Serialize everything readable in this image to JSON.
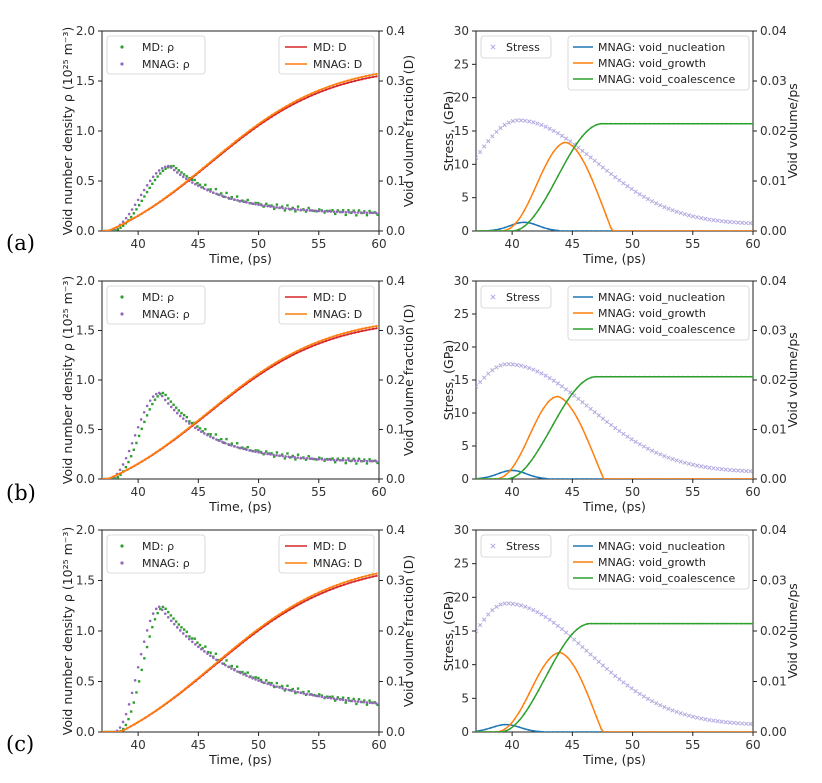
{
  "colors": {
    "md_rho": "#2ca02c",
    "mnag_rho": "#9467bd",
    "md_D": "#d62728",
    "mnag_D": "#ff7f0e",
    "stress": "#b3a8e0",
    "nucleation": "#1f77b4",
    "growth": "#ff7f0e",
    "coalescence": "#2ca02c"
  },
  "chart_data": [
    {
      "type": "scatter",
      "panel": "(a)",
      "position": "left",
      "xlabel": "Time, (ps)",
      "ylabel": "Void number density ρ (10²⁵ m⁻³)",
      "ylabel2": "Void volume fraction (D)",
      "xlim": [
        37,
        60
      ],
      "ylim": [
        0,
        2.0
      ],
      "ylim2": [
        0,
        0.4
      ],
      "xticks": [
        "40",
        "45",
        "50",
        "55",
        "60"
      ],
      "yticks": [
        "0.0",
        "0.5",
        "1.0",
        "1.5",
        "2.0"
      ],
      "yticks2": [
        "0.0",
        "0.1",
        "0.2",
        "0.3",
        "0.4"
      ],
      "legend_left": [
        "MD: ρ",
        "MNAG: ρ"
      ],
      "legend_right": [
        "MD: D",
        "MNAG: D"
      ],
      "rho_params": {
        "peak_t": 42.6,
        "peak": 0.65,
        "onset_width": 2.2,
        "tail": 0.17,
        "decay": 4.5
      },
      "D_params": {
        "t0": 37.5,
        "final": 0.315,
        "mid": 46.0,
        "k": 0.2
      }
    },
    {
      "type": "scatter",
      "panel": "(a)",
      "position": "right",
      "xlabel": "Time, (ps)",
      "ylabel": "Stress, (GPa)",
      "ylabel2": "Void volume/ps",
      "xlim": [
        37,
        60
      ],
      "ylim": [
        0,
        30
      ],
      "ylim2": [
        0,
        0.04
      ],
      "xticks": [
        "40",
        "45",
        "50",
        "55",
        "60"
      ],
      "yticks": [
        "0",
        "5",
        "10",
        "15",
        "20",
        "25",
        "30"
      ],
      "yticks2": [
        "0.00",
        "0.01",
        "0.02",
        "0.03",
        "0.04"
      ],
      "legend_left": [
        "Stress"
      ],
      "legend_right": [
        "MNAG: void_nucleation",
        "MNAG: void_growth",
        "MNAG: void_coalescence"
      ],
      "stress_params": {
        "peak_t": 40.5,
        "peak": 16.6,
        "start": 11.0,
        "end": 1.0
      },
      "nucleation_params": {
        "peak_t": 41.0,
        "peak": 1.3,
        "end_t": 44.0
      },
      "growth_params": {
        "start_t": 39.0,
        "peak_t": 44.5,
        "peak": 13.3,
        "end_t": 48.3
      },
      "coalescence_params": {
        "start_t": 40.0,
        "plateau_t": 47.5,
        "plateau": 16.1
      }
    },
    {
      "type": "scatter",
      "panel": "(b)",
      "position": "left",
      "xlabel": "Time, (ps)",
      "ylabel": "Void number density ρ (10²⁵ m⁻³)",
      "ylabel2": "Void volume fraction (D)",
      "xlim": [
        37,
        60
      ],
      "ylim": [
        0,
        2.0
      ],
      "ylim2": [
        0,
        0.4
      ],
      "xticks": [
        "40",
        "45",
        "50",
        "55",
        "60"
      ],
      "yticks": [
        "0.0",
        "0.5",
        "1.0",
        "1.5",
        "2.0"
      ],
      "yticks2": [
        "0.0",
        "0.1",
        "0.2",
        "0.3",
        "0.4"
      ],
      "legend_left": [
        "MD: ρ",
        "MNAG: ρ"
      ],
      "legend_right": [
        "MD: D",
        "MNAG: D"
      ],
      "rho_params": {
        "peak_t": 41.8,
        "peak": 0.87,
        "onset_width": 1.8,
        "tail": 0.17,
        "decay": 4.2
      },
      "D_params": {
        "t0": 37.5,
        "final": 0.31,
        "mid": 45.8,
        "k": 0.2
      }
    },
    {
      "type": "scatter",
      "panel": "(b)",
      "position": "right",
      "xlabel": "Time, (ps)",
      "ylabel": "Stress, (GPa)",
      "ylabel2": "Void volume/ps",
      "xlim": [
        37,
        60
      ],
      "ylim": [
        0,
        30
      ],
      "ylim2": [
        0,
        0.04
      ],
      "xticks": [
        "40",
        "45",
        "50",
        "55",
        "60"
      ],
      "yticks": [
        "0",
        "5",
        "10",
        "15",
        "20",
        "25",
        "30"
      ],
      "yticks2": [
        "0.00",
        "0.01",
        "0.02",
        "0.03",
        "0.04"
      ],
      "legend_left": [
        "Stress"
      ],
      "legend_right": [
        "MNAG: void_nucleation",
        "MNAG: void_growth",
        "MNAG: void_coalescence"
      ],
      "stress_params": {
        "peak_t": 39.6,
        "peak": 17.4,
        "start": 14.0,
        "end": 1.0
      },
      "nucleation_params": {
        "peak_t": 40.0,
        "peak": 1.3,
        "end_t": 43.0
      },
      "growth_params": {
        "start_t": 38.5,
        "peak_t": 43.8,
        "peak": 12.5,
        "end_t": 47.6
      },
      "coalescence_params": {
        "start_t": 39.5,
        "plateau_t": 47.0,
        "plateau": 15.5
      }
    },
    {
      "type": "scatter",
      "panel": "(c)",
      "position": "left",
      "xlabel": "Time, (ps)",
      "ylabel": "Void number density ρ (10²⁵ m⁻³)",
      "ylabel2": "Void volume fraction (D)",
      "xlim": [
        37,
        60
      ],
      "ylim": [
        0,
        2.0
      ],
      "ylim2": [
        0,
        0.4
      ],
      "xticks": [
        "40",
        "45",
        "50",
        "55",
        "60"
      ],
      "yticks": [
        "0.0",
        "0.5",
        "1.0",
        "1.5",
        "2.0"
      ],
      "yticks2": [
        "0.0",
        "0.1",
        "0.2",
        "0.3",
        "0.4"
      ],
      "legend_left": [
        "MD: ρ",
        "MNAG: ρ"
      ],
      "legend_right": [
        "MD: D",
        "MNAG: D"
      ],
      "rho_params": {
        "peak_t": 41.8,
        "peak": 1.24,
        "onset_width": 1.6,
        "tail": 0.22,
        "decay": 6.5
      },
      "D_params": {
        "t0": 38.5,
        "final": 0.315,
        "mid": 46.3,
        "k": 0.19
      }
    },
    {
      "type": "scatter",
      "panel": "(c)",
      "position": "right",
      "xlabel": "Time, (ps)",
      "ylabel": "Stress, (GPa)",
      "ylabel2": "Void volume/ps",
      "xlim": [
        37,
        60
      ],
      "ylim": [
        0,
        30
      ],
      "ylim2": [
        0,
        0.04
      ],
      "xticks": [
        "40",
        "45",
        "50",
        "55",
        "60"
      ],
      "yticks": [
        "0",
        "5",
        "10",
        "15",
        "20",
        "25",
        "30"
      ],
      "yticks2": [
        "0.00",
        "0.01",
        "0.02",
        "0.03",
        "0.04"
      ],
      "legend_left": [
        "Stress"
      ],
      "legend_right": [
        "MNAG: void_nucleation",
        "MNAG: void_growth",
        "MNAG: void_coalescence"
      ],
      "stress_params": {
        "peak_t": 39.5,
        "peak": 19.1,
        "start": 15.0,
        "end": 1.0
      },
      "nucleation_params": {
        "peak_t": 39.5,
        "peak": 1.1,
        "end_t": 42.5
      },
      "growth_params": {
        "start_t": 38.5,
        "peak_t": 44.0,
        "peak": 11.8,
        "end_t": 47.5
      },
      "coalescence_params": {
        "start_t": 39.0,
        "plateau_t": 46.5,
        "plateau": 16.1
      }
    }
  ]
}
